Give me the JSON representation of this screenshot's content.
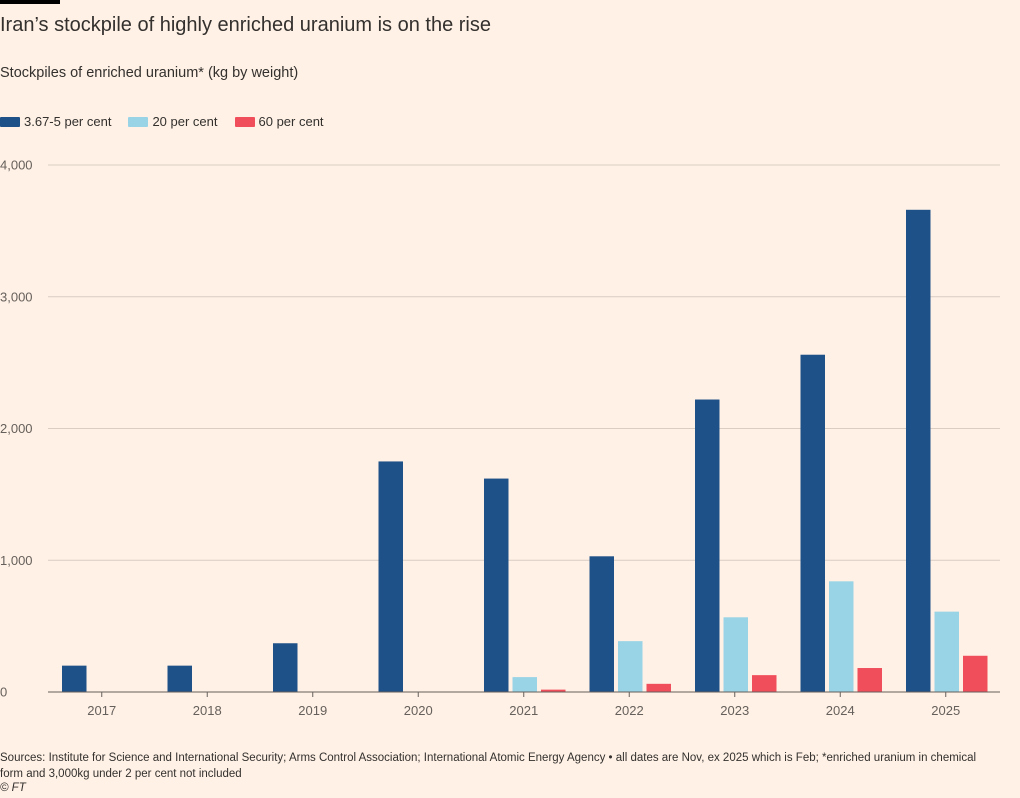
{
  "header": {
    "title": "Iran’s stockpile of highly enriched uranium is on the rise",
    "subtitle": "Stockpiles of enriched uranium* (kg by weight)"
  },
  "footer": {
    "source": "Sources: Institute for Science and International Security; Arms Control Association; International Atomic Energy Agency • all dates are Nov, ex 2025 which is Feb; *enriched uranium in chemical form and 3,000kg under 2 per cent not included",
    "copyright": "© FT"
  },
  "chart_data": {
    "type": "bar",
    "title": "Iran’s stockpile of highly enriched uranium is on the rise",
    "subtitle": "Stockpiles of enriched uranium* (kg by weight)",
    "xlabel": "",
    "ylabel": "",
    "ylim": [
      0,
      4000
    ],
    "yticks": [
      0,
      1000,
      2000,
      3000,
      4000
    ],
    "ytick_labels": [
      "0",
      "1,000",
      "2,000",
      "3,000",
      "4,000"
    ],
    "grid": true,
    "legend_position": "top-left",
    "categories": [
      "2017",
      "2018",
      "2019",
      "2020",
      "2021",
      "2022",
      "2023",
      "2024",
      "2025"
    ],
    "series": [
      {
        "name": "3.67-5 per cent",
        "color": "#1f5189",
        "values": [
          200,
          200,
          370,
          1750,
          1620,
          1030,
          2220,
          2560,
          3660
        ]
      },
      {
        "name": "20 per cent",
        "color": "#99d4e6",
        "values": [
          0,
          0,
          0,
          0,
          113,
          386,
          567,
          840,
          610
        ]
      },
      {
        "name": "60 per cent",
        "color": "#f04e5b",
        "values": [
          0,
          0,
          0,
          0,
          18,
          62,
          128,
          182,
          275
        ]
      }
    ]
  }
}
